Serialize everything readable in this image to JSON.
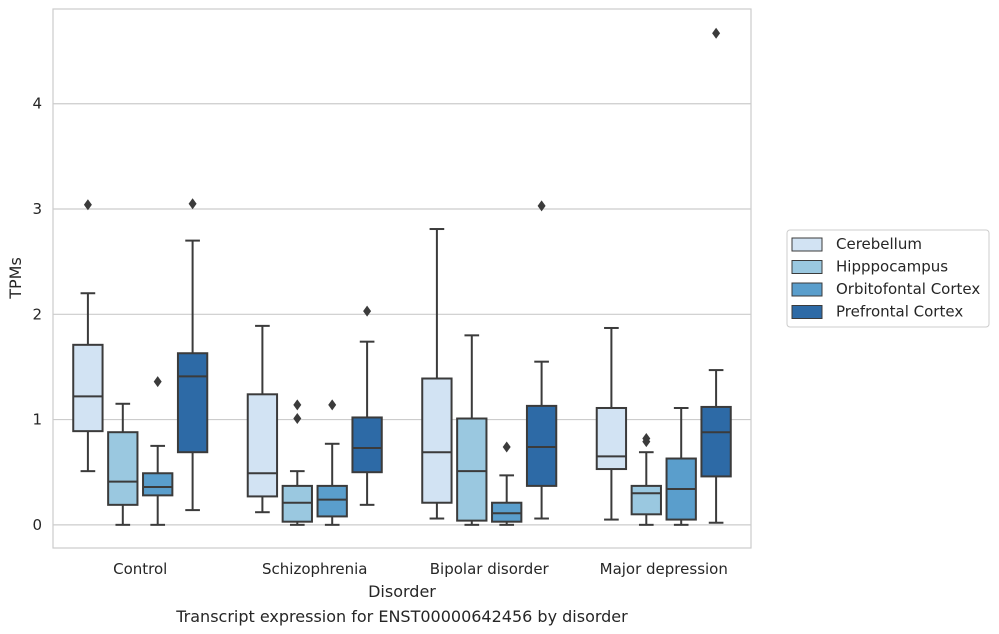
{
  "caption": "Transcript expression for ENST00000642456 by disorder",
  "chart_data": {
    "type": "box",
    "xlabel": "Disorder",
    "ylabel": "TPMs",
    "ylim": [
      -0.22,
      4.9
    ],
    "yticks": [
      0,
      1,
      2,
      3,
      4
    ],
    "grid": "horizontal",
    "legend_position": "right",
    "categories": [
      "Control",
      "Schizophrenia",
      "Bipolar disorder",
      "Major depression"
    ],
    "series": [
      {
        "name": "Cerebellum",
        "color": "#d2e3f3",
        "boxes": [
          {
            "whisker_low": 0.51,
            "q1": 0.89,
            "median": 1.22,
            "q3": 1.71,
            "whisker_high": 2.2,
            "outliers": [
              3.04
            ]
          },
          {
            "whisker_low": 0.12,
            "q1": 0.27,
            "median": 0.49,
            "q3": 1.24,
            "whisker_high": 1.89,
            "outliers": []
          },
          {
            "whisker_low": 0.06,
            "q1": 0.21,
            "median": 0.69,
            "q3": 1.39,
            "whisker_high": 2.81,
            "outliers": []
          },
          {
            "whisker_low": 0.05,
            "q1": 0.53,
            "median": 0.65,
            "q3": 1.11,
            "whisker_high": 1.87,
            "outliers": []
          }
        ]
      },
      {
        "name": "Hipppocampus",
        "color": "#9ac8e0",
        "boxes": [
          {
            "whisker_low": 0.0,
            "q1": 0.19,
            "median": 0.41,
            "q3": 0.88,
            "whisker_high": 1.15,
            "outliers": []
          },
          {
            "whisker_low": 0.0,
            "q1": 0.03,
            "median": 0.21,
            "q3": 0.37,
            "whisker_high": 0.51,
            "outliers": [
              1.01,
              1.14
            ]
          },
          {
            "whisker_low": 0.0,
            "q1": 0.04,
            "median": 0.51,
            "q3": 1.01,
            "whisker_high": 1.8,
            "outliers": []
          },
          {
            "whisker_low": 0.0,
            "q1": 0.1,
            "median": 0.3,
            "q3": 0.37,
            "whisker_high": 0.69,
            "outliers": [
              0.79,
              0.82
            ]
          }
        ]
      },
      {
        "name": "Orbitofontal Cortex",
        "color": "#5a9ecc",
        "boxes": [
          {
            "whisker_low": 0.0,
            "q1": 0.28,
            "median": 0.36,
            "q3": 0.49,
            "whisker_high": 0.75,
            "outliers": [
              1.36
            ]
          },
          {
            "whisker_low": 0.0,
            "q1": 0.08,
            "median": 0.24,
            "q3": 0.37,
            "whisker_high": 0.77,
            "outliers": [
              1.14
            ]
          },
          {
            "whisker_low": 0.0,
            "q1": 0.03,
            "median": 0.11,
            "q3": 0.21,
            "whisker_high": 0.47,
            "outliers": [
              0.74
            ]
          },
          {
            "whisker_low": 0.0,
            "q1": 0.05,
            "median": 0.34,
            "q3": 0.63,
            "whisker_high": 1.11,
            "outliers": []
          }
        ]
      },
      {
        "name": "Prefrontal Cortex",
        "color": "#2d6aa6",
        "boxes": [
          {
            "whisker_low": 0.14,
            "q1": 0.69,
            "median": 1.41,
            "q3": 1.63,
            "whisker_high": 2.7,
            "outliers": [
              3.05
            ]
          },
          {
            "whisker_low": 0.19,
            "q1": 0.5,
            "median": 0.73,
            "q3": 1.02,
            "whisker_high": 1.74,
            "outliers": [
              2.03
            ]
          },
          {
            "whisker_low": 0.06,
            "q1": 0.37,
            "median": 0.74,
            "q3": 1.13,
            "whisker_high": 1.55,
            "outliers": [
              3.03
            ]
          },
          {
            "whisker_low": 0.02,
            "q1": 0.46,
            "median": 0.88,
            "q3": 1.12,
            "whisker_high": 1.47,
            "outliers": [
              4.67
            ]
          }
        ]
      }
    ]
  }
}
